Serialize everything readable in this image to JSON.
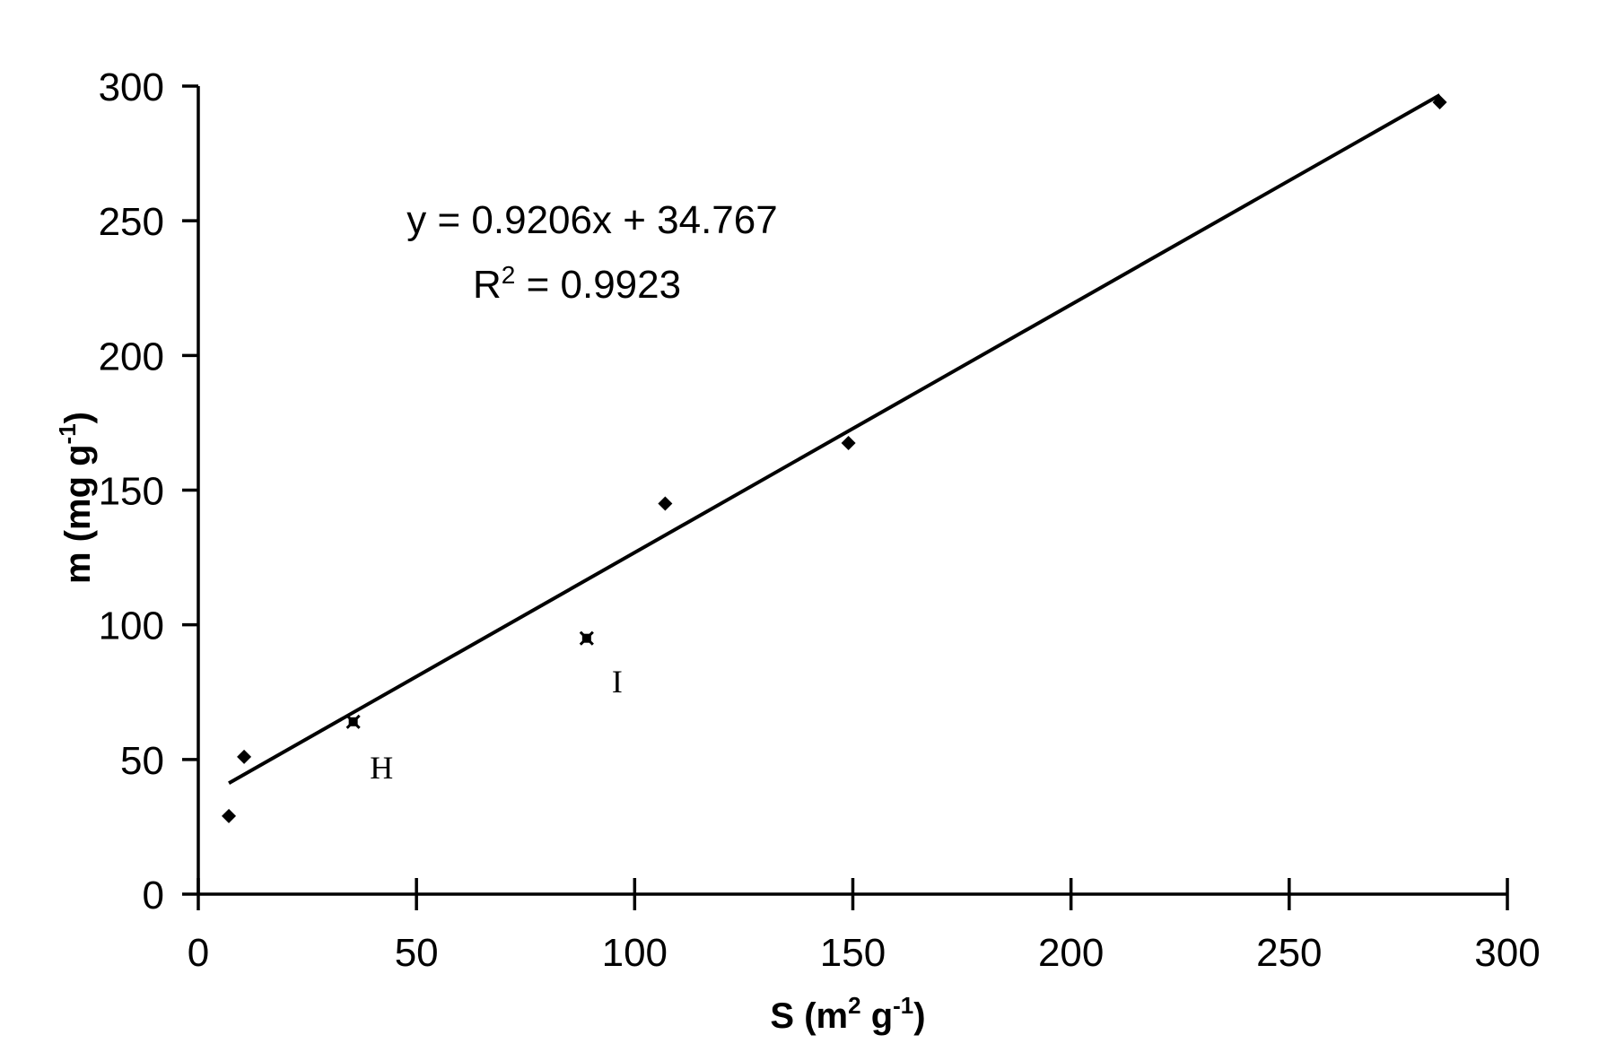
{
  "chart_data": {
    "type": "scatter",
    "title": "",
    "xlabel": "S (m",
    "xlabel_sup1": "2",
    "xlabel_mid": " g",
    "xlabel_sup2": "-1",
    "xlabel_end": ")",
    "ylabel": "m  (mg g",
    "ylabel_sup": "-1",
    "ylabel_end": ")",
    "xlim": [
      0,
      300
    ],
    "ylim": [
      0,
      300
    ],
    "xticks": [
      "0",
      "50",
      "100",
      "150",
      "200",
      "250",
      "300"
    ],
    "yticks": [
      "0",
      "50",
      "100",
      "150",
      "200",
      "250",
      "300"
    ],
    "grid": false,
    "legend": "none",
    "series": [
      {
        "marker": "diamond",
        "x": [
          7,
          10.5,
          107,
          149,
          284.5
        ],
        "y": [
          29,
          51,
          145,
          167.5,
          294
        ]
      },
      {
        "marker": "x",
        "x": [
          35.5,
          89
        ],
        "y": [
          64,
          95
        ]
      }
    ],
    "point_labels": [
      {
        "text": "H",
        "x": 42,
        "y": 43
      },
      {
        "text": "I",
        "x": 96,
        "y": 75
      }
    ],
    "trendline": {
      "slope": 0.9206,
      "intercept": 34.767,
      "x_range": [
        7,
        284.5
      ],
      "equation": "y = 0.9206x + 34.767",
      "r2_prefix": "R",
      "r2_sup": "2",
      "r2_suffix": " = 0.9923"
    }
  }
}
